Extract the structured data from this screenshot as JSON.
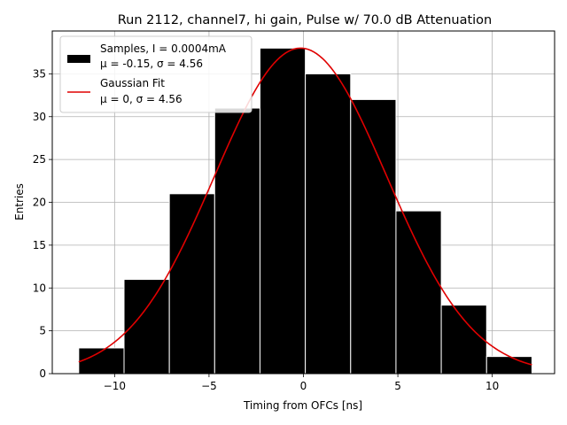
{
  "chart_data": {
    "type": "bar",
    "title": "Run 2112, channel7, hi gain, Pulse w/ 70.0 dB Attenuation",
    "xlabel": "Timing from OFCs [ns]",
    "ylabel": "Entries",
    "xlim": [
      -13.3,
      13.3
    ],
    "ylim": [
      0,
      40
    ],
    "xticks": [
      -10,
      -5,
      0,
      5,
      10
    ],
    "xtick_labels": [
      "−10",
      "−5",
      "0",
      "5",
      "10"
    ],
    "yticks": [
      0,
      5,
      10,
      15,
      20,
      25,
      30,
      35
    ],
    "yticks_labels": [
      "0",
      "5",
      "10",
      "15",
      "20",
      "25",
      "30",
      "35"
    ],
    "grid": true,
    "legend_position": "top-left",
    "histogram": {
      "name_line1": "Samples, I = 0.0004mA",
      "name_line2": "μ = -0.15, σ = 4.56",
      "color": "#000000",
      "edge_color": "#ffffff",
      "bin_edges": [
        -11.9,
        -9.5,
        -7.1,
        -4.7,
        -2.3,
        0.1,
        2.5,
        4.9,
        7.3,
        9.7,
        12.1
      ],
      "counts": [
        3,
        11,
        21,
        31,
        38,
        35,
        32,
        19,
        8,
        2
      ]
    },
    "fit": {
      "name_line1": "Gaussian Fit",
      "name_line2": "μ = 0, σ = 4.56",
      "color": "#e00000",
      "mu": -0.15,
      "sigma": 4.56,
      "amplitude": 38,
      "x_range": [
        -11.9,
        12.1
      ]
    }
  }
}
